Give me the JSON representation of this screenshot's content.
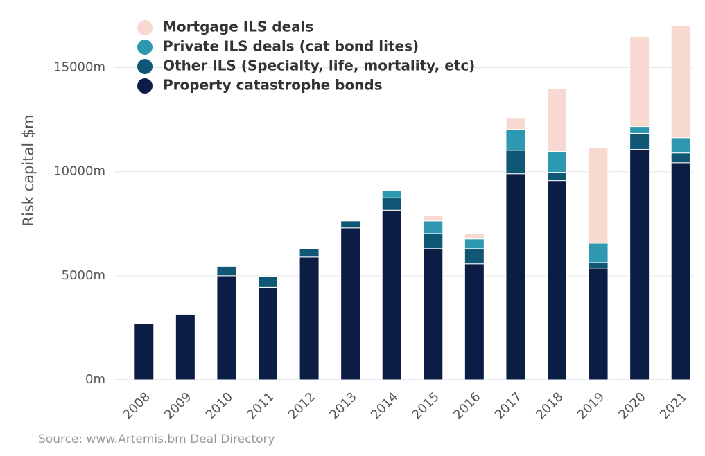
{
  "chart_data": {
    "type": "stacked-bar",
    "y_label": "Risk capital $m",
    "source": "Source: www.Artemis.bm Deal Directory",
    "categories": [
      "2008",
      "2009",
      "2010",
      "2011",
      "2012",
      "2013",
      "2014",
      "2015",
      "2016",
      "2017",
      "2018",
      "2019",
      "2020",
      "2021"
    ],
    "series": [
      {
        "name": "Property catastrophe bonds",
        "color": "#0b1d45",
        "values": [
          2700,
          3150,
          5000,
          4450,
          5900,
          7300,
          8150,
          6300,
          5570,
          9900,
          9570,
          5370,
          11070,
          10430
        ]
      },
      {
        "name": "Other ILS (Specialty, life, mortality, etc)",
        "color": "#0f5775",
        "values": [
          0,
          0,
          450,
          520,
          400,
          330,
          600,
          730,
          730,
          1130,
          400,
          260,
          770,
          470
        ]
      },
      {
        "name": "Private ILS deals (cat bond lites)",
        "color": "#2e98b0",
        "values": [
          0,
          0,
          0,
          0,
          0,
          0,
          330,
          600,
          470,
          1000,
          1000,
          930,
          330,
          730
        ]
      },
      {
        "name": "Mortgage ILS deals",
        "color": "#f8d9d2",
        "values": [
          0,
          0,
          0,
          0,
          0,
          0,
          0,
          270,
          270,
          570,
          3000,
          4600,
          4330,
          5400
        ]
      }
    ],
    "ylim": [
      0,
      17250
    ],
    "yticks": [
      {
        "value": 0,
        "label": "0m"
      },
      {
        "value": 5000,
        "label": "5000m"
      },
      {
        "value": 10000,
        "label": "10000m"
      },
      {
        "value": 15000,
        "label": "15000m"
      }
    ],
    "grid": true
  }
}
